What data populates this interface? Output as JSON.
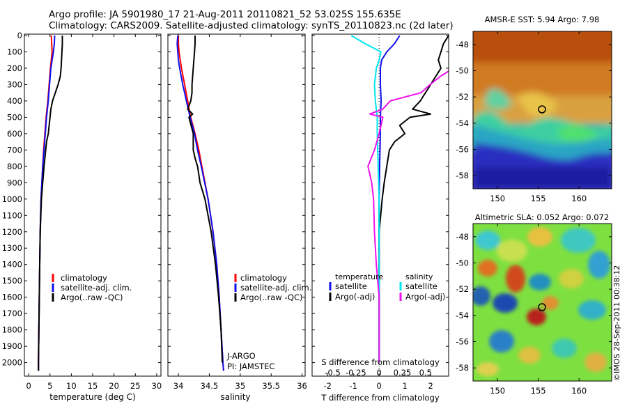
{
  "header": {
    "line1": "Argo profile: JA 5901980_17 21-Aug-2011 20110821_52 53.025S 155.635E",
    "line2": "Climatology: CARS2009. Satellite-adjusted climatology: synTS_20110823.nc (2d later)"
  },
  "credit": "©IMOS 28-Sep-2011 00:38:12",
  "colors": {
    "climatology": "#ff0000",
    "satellite": "#1010ee",
    "argo": "#000000",
    "sat_salinity": "#00e5ee",
    "argo_salinity": "#ee11ee"
  },
  "depth_ticks": [
    "0",
    "100",
    "200",
    "300",
    "400",
    "500",
    "600",
    "700",
    "800",
    "900",
    "1000",
    "1100",
    "1200",
    "1300",
    "1400",
    "1500",
    "1600",
    "1700",
    "1800",
    "1900",
    "2000"
  ],
  "temp_panel": {
    "xlabel": "temperature (deg C)",
    "xticks": [
      "0",
      "5",
      "10",
      "15",
      "20",
      "25",
      "30"
    ],
    "legend": [
      "climatology",
      "satellite-adj. clim.",
      "Argo(..raw -QC)"
    ]
  },
  "sal_panel": {
    "xlabel": "salinity",
    "xticks": [
      "34",
      "34.5",
      "35",
      "35.5",
      "36"
    ],
    "legend": [
      "climatology",
      "satellite-adj. clim.",
      "Argo(..raw -QC)"
    ],
    "note1": "J-ARGO",
    "note2": "PI: JAMSTEC"
  },
  "diff_panel": {
    "xlabel_t": "T difference from climatology",
    "xlabel_s": "S difference from climatology",
    "t_ticks": [
      "-2",
      "-1",
      "0",
      "1",
      "2"
    ],
    "s_ticks": [
      "-0.5",
      "-0.25",
      "0",
      "0.25",
      "0.5"
    ],
    "legend_t_title": "temperature",
    "legend_s_title": "salinity",
    "legend_t": [
      "satellite",
      "Argo(-adj)"
    ],
    "legend_s": [
      "satellite",
      "Argo(-adj)"
    ]
  },
  "map_sst": {
    "title": "AMSR-E SST: 5.94 Argo: 7.98",
    "yticks": [
      "-48",
      "-50",
      "-52",
      "-54",
      "-56",
      "-58"
    ],
    "xticks": [
      "150",
      "155",
      "160"
    ]
  },
  "map_sla": {
    "title": "Altimetric SLA: 0.052 Argo: 0.072",
    "yticks": [
      "-48",
      "-50",
      "-52",
      "-54",
      "-56",
      "-58"
    ],
    "xticks": [
      "150",
      "155",
      "160"
    ]
  },
  "chart_data": [
    {
      "type": "line",
      "panel": "temperature",
      "xlabel": "temperature (deg C)",
      "ylabel": "",
      "xlim": [
        -1,
        31
      ],
      "ylim": [
        2070,
        0
      ],
      "series": [
        {
          "name": "climatology",
          "depth": [
            0,
            50,
            100,
            150,
            200,
            300,
            400,
            500,
            600,
            700,
            800,
            900,
            1000,
            1200,
            1400,
            1600,
            1800,
            2000,
            2050
          ],
          "values": [
            5.3,
            5.4,
            5.5,
            5.3,
            5.1,
            4.8,
            4.5,
            4.1,
            3.8,
            3.5,
            3.3,
            3.1,
            2.9,
            2.7,
            2.6,
            2.5,
            2.4,
            2.3,
            2.3
          ]
        },
        {
          "name": "satellite-adj. clim.",
          "depth": [
            0,
            50,
            100,
            150,
            200,
            300,
            400,
            500,
            600,
            700,
            800,
            900,
            1000,
            1200,
            1400,
            1600,
            1800,
            2000,
            2050
          ],
          "values": [
            6.1,
            6.0,
            5.8,
            5.5,
            5.2,
            4.9,
            4.6,
            4.2,
            3.9,
            3.6,
            3.3,
            3.1,
            2.9,
            2.7,
            2.6,
            2.5,
            2.4,
            2.3,
            2.3
          ]
        },
        {
          "name": "Argo(..raw -QC)",
          "depth": [
            0,
            50,
            100,
            150,
            200,
            250,
            300,
            400,
            450,
            500,
            600,
            650,
            700,
            800,
            900,
            1000,
            1200,
            1400,
            1600,
            1800,
            2000,
            2050
          ],
          "values": [
            7.9,
            7.9,
            7.8,
            7.7,
            7.6,
            7.4,
            6.9,
            5.6,
            5.2,
            5.0,
            4.6,
            4.2,
            4.0,
            3.6,
            3.3,
            3.0,
            2.7,
            2.6,
            2.5,
            2.4,
            2.3,
            2.3
          ]
        }
      ]
    },
    {
      "type": "line",
      "panel": "salinity",
      "xlabel": "salinity",
      "ylabel": "",
      "xlim": [
        33.83,
        36.05
      ],
      "ylim": [
        2070,
        0
      ],
      "series": [
        {
          "name": "climatology",
          "depth": [
            0,
            50,
            100,
            150,
            200,
            300,
            400,
            500,
            600,
            700,
            800,
            1000,
            1200,
            1400,
            1600,
            1800,
            2000,
            2050
          ],
          "values": [
            34.0,
            34.0,
            34.01,
            34.03,
            34.05,
            34.1,
            34.15,
            34.2,
            34.27,
            34.33,
            34.38,
            34.48,
            34.56,
            34.62,
            34.66,
            34.69,
            34.72,
            34.73
          ]
        },
        {
          "name": "satellite-adj. clim.",
          "depth": [
            0,
            50,
            100,
            150,
            200,
            300,
            400,
            500,
            600,
            700,
            800,
            1000,
            1200,
            1400,
            1600,
            1800,
            2000,
            2050
          ],
          "values": [
            33.99,
            33.98,
            33.99,
            34.0,
            34.02,
            34.07,
            34.13,
            34.19,
            34.26,
            34.31,
            34.37,
            34.48,
            34.56,
            34.62,
            34.66,
            34.69,
            34.72,
            34.73
          ]
        },
        {
          "name": "Argo(..raw -QC)",
          "depth": [
            0,
            50,
            100,
            150,
            200,
            250,
            300,
            350,
            400,
            450,
            480,
            500,
            600,
            700,
            750,
            800,
            900,
            1000,
            1200,
            1400,
            1600,
            1800,
            2000
          ],
          "values": [
            34.27,
            34.27,
            34.26,
            34.25,
            34.24,
            34.23,
            34.22,
            34.22,
            34.2,
            34.15,
            34.23,
            34.17,
            34.24,
            34.24,
            34.27,
            34.31,
            34.35,
            34.43,
            34.53,
            34.6,
            34.65,
            34.69,
            34.71
          ]
        }
      ]
    },
    {
      "type": "line",
      "panel": "difference",
      "xlabel": "T difference from climatology",
      "ylabel": "",
      "xlim": [
        -2.6,
        2.7
      ],
      "ylim": [
        2070,
        0
      ],
      "series": [
        {
          "name": "temperature satellite",
          "depth": [
            0,
            50,
            100,
            150,
            200,
            300,
            400,
            500,
            600,
            800,
            1000,
            1400,
            2000
          ],
          "values": [
            0.8,
            0.6,
            0.3,
            0.1,
            0.05,
            0.05,
            0.08,
            0.05,
            0.05,
            0.02,
            0.0,
            0.0,
            0.0
          ]
        },
        {
          "name": "temperature Argo(-adj)",
          "depth": [
            0,
            50,
            100,
            150,
            200,
            300,
            400,
            450,
            480,
            500,
            550,
            600,
            650,
            700,
            800,
            900,
            1000,
            1200,
            1400,
            1600,
            2000
          ],
          "values": [
            2.7,
            2.5,
            2.4,
            2.3,
            2.4,
            2.0,
            1.6,
            1.3,
            2.0,
            1.2,
            0.8,
            1.0,
            0.6,
            0.4,
            0.3,
            0.2,
            0.12,
            0.0,
            0.0,
            0.0,
            0.0
          ]
        },
        {
          "name": "salinity satellite",
          "depth": [
            0,
            50,
            100,
            150,
            200,
            300,
            400,
            500,
            600,
            800,
            1000,
            1400,
            2000
          ],
          "values": [
            -0.3,
            -0.15,
            0.02,
            0.0,
            -0.03,
            -0.05,
            -0.04,
            -0.02,
            -0.02,
            -0.01,
            0.0,
            0.0,
            0.0
          ]
        },
        {
          "name": "salinity Argo(-adj)",
          "depth": [
            0,
            50,
            100,
            150,
            200,
            250,
            300,
            350,
            400,
            450,
            480,
            500,
            600,
            700,
            800,
            900,
            1000,
            1200,
            1400,
            1600,
            2000
          ],
          "values": [
            1.3,
            1.2,
            1.0,
            0.9,
            0.8,
            0.66,
            0.55,
            0.45,
            0.12,
            0.04,
            -0.1,
            0.04,
            0.0,
            -0.05,
            -0.12,
            -0.08,
            -0.06,
            -0.05,
            -0.03,
            0.0,
            0.0
          ]
        }
      ]
    },
    {
      "type": "heatmap",
      "panel": "map_sst",
      "title": "AMSR-E SST: 5.94 Argo: 7.98",
      "xlim": [
        147,
        164
      ],
      "ylim": [
        -59,
        -47
      ],
      "marker": {
        "lon": 155.635,
        "lat": -53.025
      }
    },
    {
      "type": "heatmap",
      "panel": "map_sla",
      "title": "Altimetric SLA: 0.052 Argo: 0.072",
      "xlim": [
        147,
        164
      ],
      "ylim": [
        -59,
        -47
      ],
      "marker": {
        "lon": 155.635,
        "lat": -53.025
      }
    }
  ]
}
